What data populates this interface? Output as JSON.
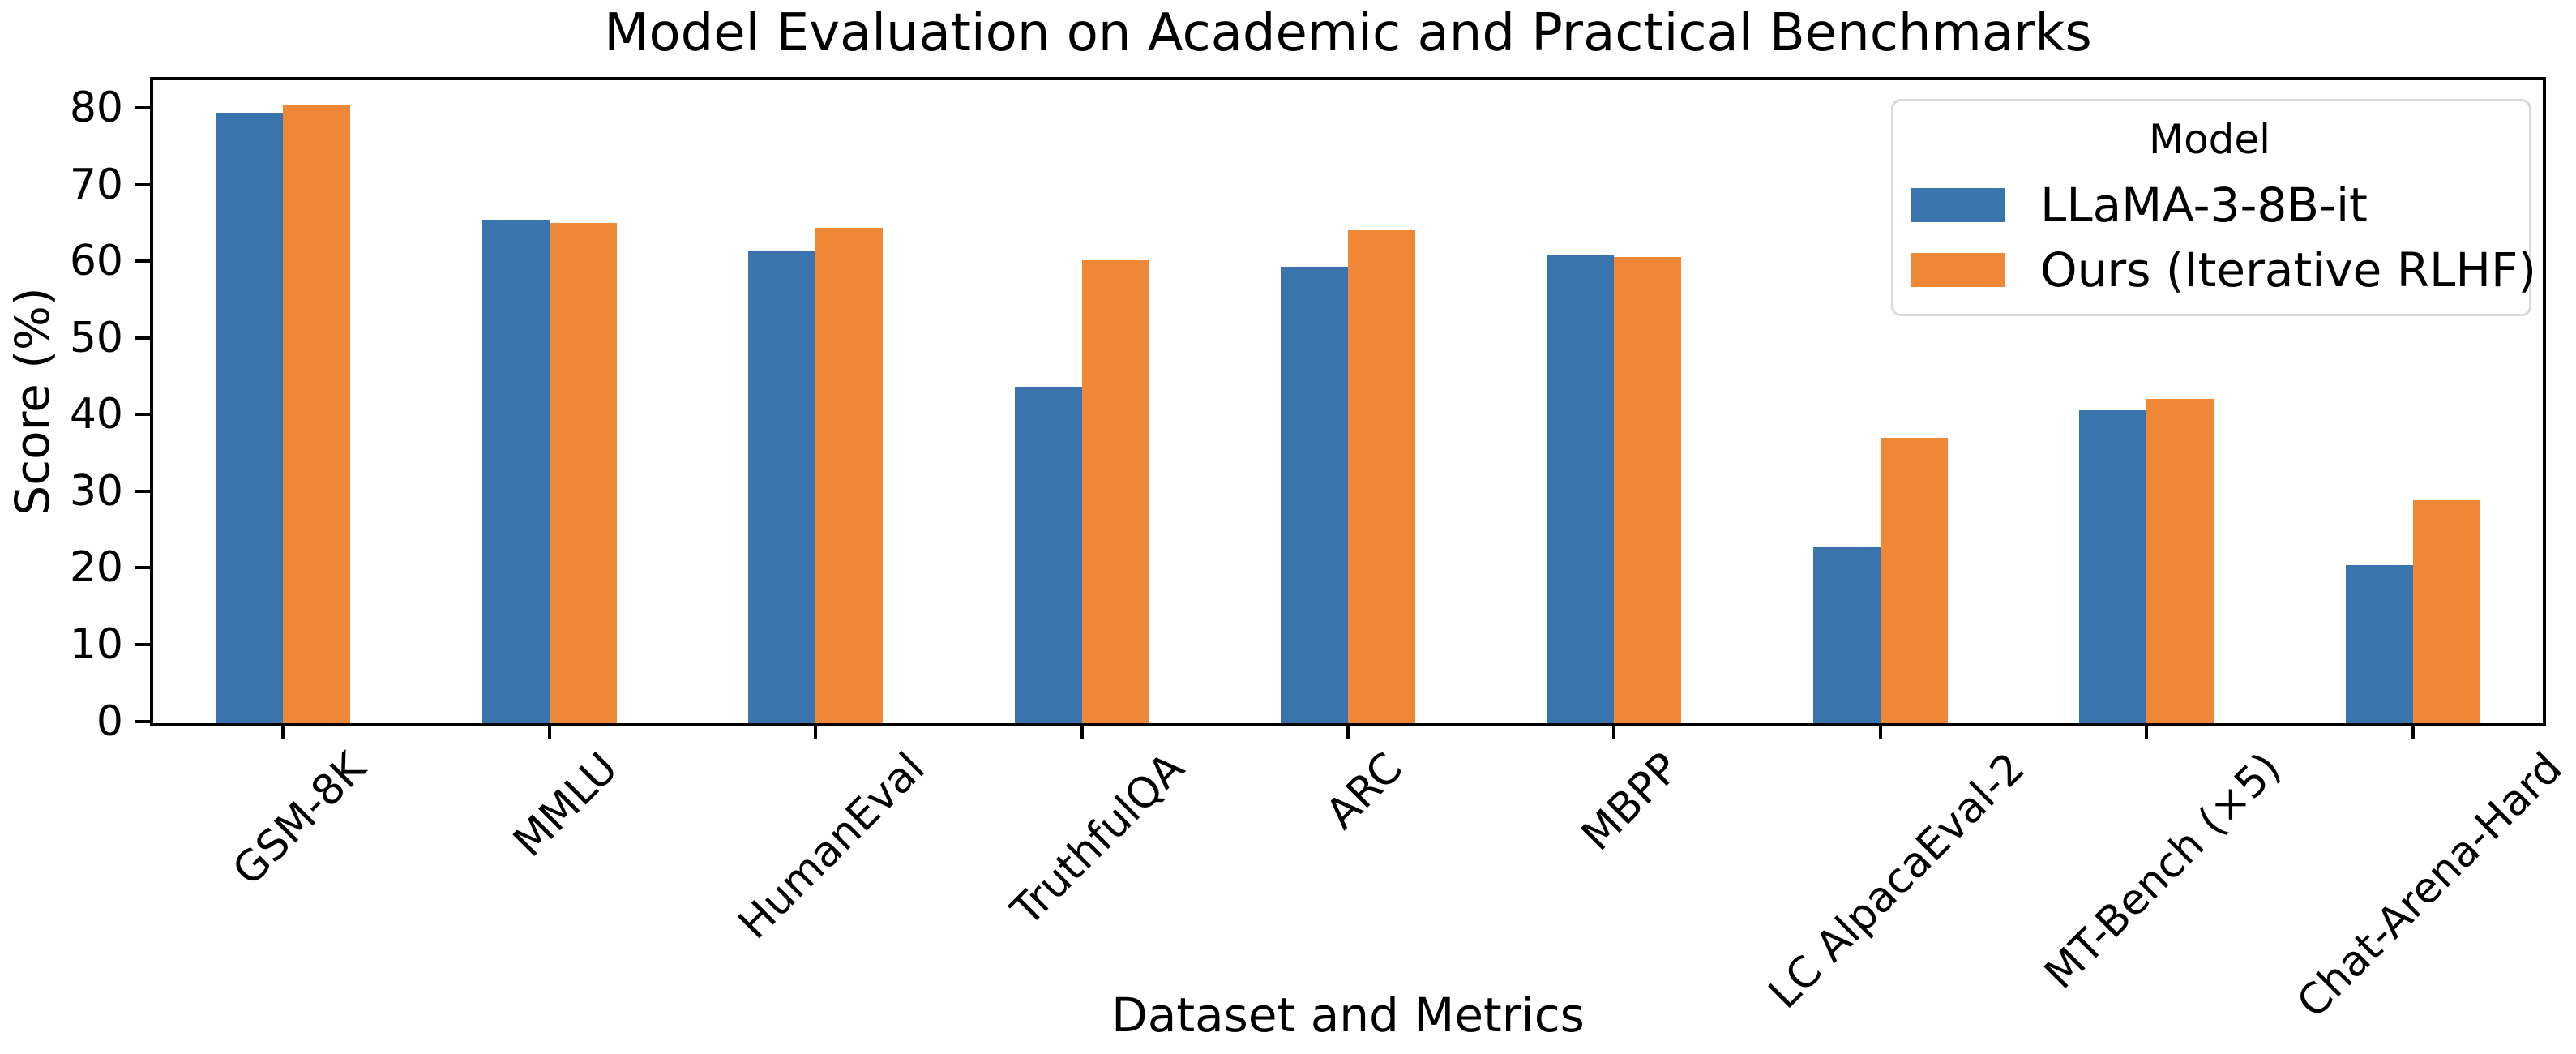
{
  "figure": {
    "title": "Model Evaluation on Academic and Practical Benchmarks",
    "xlabel": "Dataset and Metrics",
    "ylabel": "Score (%)"
  },
  "legend": {
    "title": "Model",
    "position": "upper right",
    "entries": [
      {
        "label": "LLaMA-3-8B-it",
        "color": "#3a74ae"
      },
      {
        "label": "Ours (Iterative RLHF)",
        "color": "#ee8836"
      }
    ]
  },
  "colors": {
    "series_blue": "#3a74ae",
    "series_orange": "#ee8836",
    "axis": "#000000",
    "legend_border": "#d9d9d9",
    "background": "#ffffff"
  },
  "chart_data": {
    "type": "bar",
    "title": "Model Evaluation on Academic and Practical Benchmarks",
    "xlabel": "Dataset and Metrics",
    "ylabel": "Score (%)",
    "categories": [
      "GSM-8K",
      "MMLU",
      "HumanEval",
      "TruthfulQA",
      "ARC",
      "MBPP",
      "LC AlpacaEval-2",
      "MT-Bench (×5)",
      "Chat-Arena-Hard"
    ],
    "series": [
      {
        "name": "LLaMA-3-8B-it",
        "color": "#3a74ae",
        "values": [
          79.6,
          65.7,
          61.6,
          43.9,
          59.5,
          61.1,
          22.9,
          40.8,
          20.6
        ]
      },
      {
        "name": "Ours (Iterative RLHF)",
        "color": "#ee8836",
        "values": [
          80.7,
          65.3,
          64.6,
          60.4,
          64.3,
          60.8,
          37.2,
          42.3,
          29.1
        ]
      }
    ],
    "ylim": [
      0,
      84.7
    ],
    "yticks": [
      0,
      10,
      20,
      30,
      40,
      50,
      60,
      70,
      80
    ],
    "x_tick_rotation": 45,
    "grid": false,
    "legend_position": "upper right",
    "legend_title": "Model"
  }
}
